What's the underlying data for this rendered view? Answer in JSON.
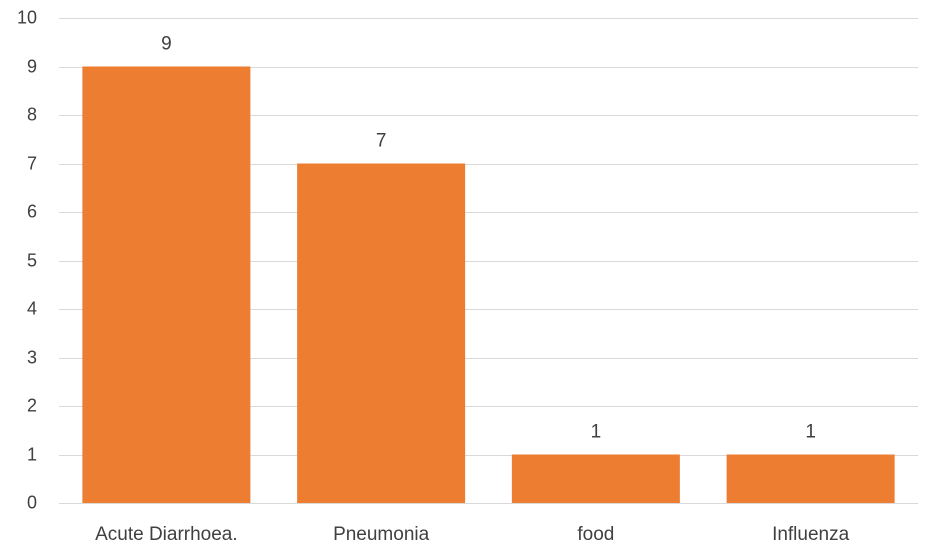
{
  "chart_data": {
    "type": "bar",
    "categories": [
      "Acute Diarrhoea.",
      "Pneumonia",
      "food",
      "Influenza"
    ],
    "values": [
      9,
      7,
      1,
      1
    ],
    "data_labels": [
      "9",
      "7",
      "1",
      "1"
    ],
    "title": "",
    "xlabel": "",
    "ylabel": "",
    "ylim": [
      0,
      10
    ],
    "yticks": [
      "0",
      "1",
      "2",
      "3",
      "4",
      "5",
      "6",
      "7",
      "8",
      "9",
      "10"
    ],
    "grid": true,
    "legend": "none",
    "bar_color": "#ED7D31",
    "grid_color": "#D9D9D9",
    "text_color": "#404040"
  }
}
